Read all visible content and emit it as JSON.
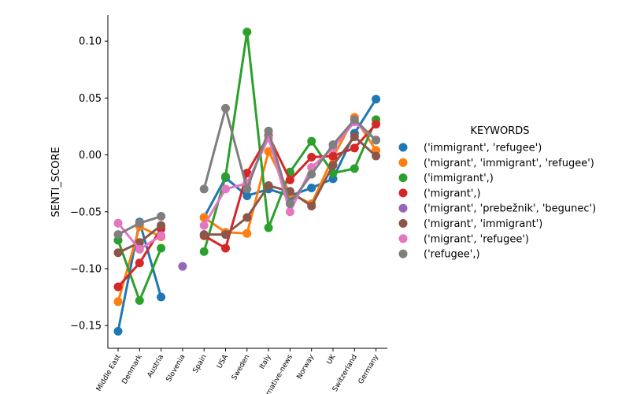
{
  "chart_data": {
    "type": "line",
    "title": "",
    "xlabel": "",
    "ylabel": "SENTI_SCORE",
    "categories": [
      "Middle East",
      "Denmark",
      "Austria",
      "Slovenia",
      "Spain",
      "USA",
      "Sweden",
      "Italy",
      "alternative-news",
      "Norway",
      "UK",
      "Switzerland",
      "Germany"
    ],
    "ylim": [
      -0.17,
      0.123
    ],
    "yticks": [
      -0.15,
      -0.1,
      -0.05,
      0.0,
      0.05,
      0.1
    ],
    "ytick_labels": [
      "−0.15",
      "−0.10",
      "−0.05",
      "0.00",
      "0.05",
      "0.10"
    ],
    "legend": {
      "title": "KEYWORDS",
      "placement": "right"
    },
    "series": [
      {
        "name": "('immigrant', 'refugee')",
        "color": "#1f77b4",
        "values": [
          -0.155,
          -0.059,
          -0.125,
          null,
          -0.055,
          -0.02,
          -0.036,
          -0.03,
          -0.036,
          -0.029,
          -0.021,
          0.019,
          0.049
        ]
      },
      {
        "name": "('migrant', 'immigrant', 'refugee')",
        "color": "#ff7f0e",
        "values": [
          -0.129,
          -0.063,
          -0.072,
          null,
          -0.055,
          -0.068,
          -0.069,
          0.003,
          -0.034,
          -0.043,
          -0.002,
          0.033,
          0.004
        ]
      },
      {
        "name": "('immigrant',)",
        "color": "#2ca02c",
        "values": [
          -0.075,
          -0.128,
          -0.082,
          null,
          -0.085,
          -0.019,
          0.108,
          -0.064,
          -0.015,
          0.012,
          -0.016,
          -0.012,
          0.031
        ]
      },
      {
        "name": "('migrant',)",
        "color": "#d62728",
        "values": [
          -0.116,
          -0.095,
          -0.065,
          null,
          -0.071,
          -0.082,
          -0.016,
          0.017,
          -0.022,
          -0.002,
          -0.001,
          0.006,
          0.027
        ]
      },
      {
        "name": "('migrant', 'prebežnik', 'begunec')",
        "color": "#9467bd",
        "values": [
          null,
          null,
          null,
          -0.098,
          null,
          null,
          null,
          null,
          null,
          null,
          null,
          null,
          null
        ]
      },
      {
        "name": "('migrant', 'immigrant')",
        "color": "#8c564b",
        "values": [
          -0.086,
          -0.077,
          -0.062,
          null,
          -0.07,
          -0.07,
          -0.055,
          -0.027,
          -0.032,
          -0.045,
          -0.009,
          0.016,
          -0.001
        ]
      },
      {
        "name": "('migrant', 'refugee')",
        "color": "#e377c2",
        "values": [
          -0.06,
          -0.083,
          -0.071,
          null,
          -0.062,
          -0.03,
          -0.025,
          0.015,
          -0.05,
          -0.011,
          0.006,
          0.029,
          0.013
        ]
      },
      {
        "name": "('refugee',)",
        "color": "#7f7f7f",
        "values": [
          -0.07,
          -0.06,
          -0.054,
          null,
          -0.03,
          0.041,
          -0.03,
          0.021,
          -0.043,
          -0.017,
          0.009,
          0.031,
          0.013
        ]
      }
    ]
  }
}
